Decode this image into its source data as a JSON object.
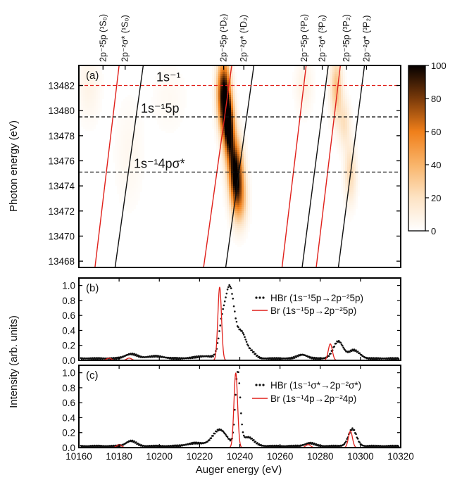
{
  "colors": {
    "frame": "#000000",
    "red": "#e0201b",
    "black": "#111111",
    "cmap_low": "#ffffff",
    "cmap_mid": "#f5891f",
    "cmap_high": "#050000"
  },
  "figure": {
    "xlabel": "Auger energy (eV)",
    "ylabel_top": "Photon energy (eV)",
    "ylabel_bottom": "Intensity (arb. units)"
  },
  "chart_data": [
    {
      "type": "heatmap",
      "panel_label": "(a)",
      "xlim": [
        10160,
        10320
      ],
      "ylim": [
        13467.5,
        13483.6
      ],
      "yticks": [
        13468,
        13470,
        13472,
        13474,
        13476,
        13478,
        13480,
        13482
      ],
      "colorbar": {
        "min": 0,
        "max": 100,
        "ticks": [
          0,
          20,
          40,
          60,
          80,
          100
        ]
      },
      "top_labels": [
        {
          "text": "2p⁻²5p (¹S₀)",
          "x": 10172
        },
        {
          "text": "2p⁻²σ* (¹S₀)",
          "x": 10183
        },
        {
          "text": "2p⁻²5p (¹D₂)",
          "x": 10232
        },
        {
          "text": "2p⁻²σ* (¹D₂)",
          "x": 10242
        },
        {
          "text": "2p⁻²5p (³P₀)",
          "x": 10272
        },
        {
          "text": "2p⁻²σ* (³P₀)",
          "x": 10281
        },
        {
          "text": "2p⁻²5p (³P₂)",
          "x": 10293
        },
        {
          "text": "2p⁻²σ* (³P₂)",
          "x": 10303
        }
      ],
      "hlines": [
        {
          "label": "1s⁻¹",
          "y": 13482.0,
          "color": "red"
        },
        {
          "label": "1s⁻¹5p",
          "y": 13479.5,
          "color": "black"
        },
        {
          "label": "1s⁻¹4pσ*",
          "y": 13475.1,
          "color": "black"
        }
      ],
      "diagonal_lines": [
        {
          "name": "5p 1S0",
          "color": "red",
          "from": [
            10168,
            13467.5
          ],
          "to": [
            10180,
            13483.6
          ]
        },
        {
          "name": "sigma 1S0",
          "color": "black",
          "from": [
            10178,
            13467.5
          ],
          "to": [
            10192,
            13483.6
          ]
        },
        {
          "name": "5p 1D2",
          "color": "red",
          "from": [
            10222,
            13467.5
          ],
          "to": [
            10236,
            13483.6
          ]
        },
        {
          "name": "sigma 1D2",
          "color": "black",
          "from": [
            10233,
            13467.5
          ],
          "to": [
            10247,
            13483.6
          ]
        },
        {
          "name": "5p 3P0",
          "color": "red",
          "from": [
            10261,
            13467.5
          ],
          "to": [
            10273,
            13483.6
          ]
        },
        {
          "name": "sigma 3P0",
          "color": "black",
          "from": [
            10271,
            13467.5
          ],
          "to": [
            10284,
            13483.6
          ]
        },
        {
          "name": "5p 3P2",
          "color": "red",
          "from": [
            10278,
            13467.5
          ],
          "to": [
            10290,
            13483.6
          ]
        },
        {
          "name": "sigma 3P2",
          "color": "black",
          "from": [
            10289,
            13467.5
          ],
          "to": [
            10302,
            13483.6
          ]
        }
      ],
      "blobs": [
        {
          "x": 10232,
          "y": 13481.5,
          "sx": 2.2,
          "sy": 1.8,
          "amp": 100
        },
        {
          "x": 10234,
          "y": 13479.3,
          "sx": 2.0,
          "sy": 1.4,
          "amp": 85
        },
        {
          "x": 10238,
          "y": 13475.0,
          "sx": 2.4,
          "sy": 1.7,
          "amp": 100
        },
        {
          "x": 10235,
          "y": 13477.5,
          "sx": 2.0,
          "sy": 1.5,
          "amp": 55
        },
        {
          "x": 10240,
          "y": 13472.8,
          "sx": 2.5,
          "sy": 1.4,
          "amp": 40
        },
        {
          "x": 10288,
          "y": 13481.8,
          "sx": 2.0,
          "sy": 1.8,
          "amp": 35
        },
        {
          "x": 10292,
          "y": 13479.0,
          "sx": 2.0,
          "sy": 1.3,
          "amp": 20
        },
        {
          "x": 10295,
          "y": 13475.0,
          "sx": 2.0,
          "sy": 1.6,
          "amp": 25
        },
        {
          "x": 10272,
          "y": 13482.0,
          "sx": 3.0,
          "sy": 1.5,
          "amp": 10
        },
        {
          "x": 10165,
          "y": 13482.0,
          "sx": 4.0,
          "sy": 2.0,
          "amp": 8
        },
        {
          "x": 10185,
          "y": 13476.5,
          "sx": 5.0,
          "sy": 3.0,
          "amp": 5
        },
        {
          "x": 10205,
          "y": 13481.0,
          "sx": 6.0,
          "sy": 2.0,
          "amp": 4
        }
      ]
    },
    {
      "type": "line",
      "panel_label": "(b)",
      "xlim": [
        10160,
        10320
      ],
      "ylim": [
        0,
        1.1
      ],
      "yticks": [
        0.0,
        0.2,
        0.4,
        0.6,
        0.8,
        1.0
      ],
      "series": [
        {
          "name": "HBr (1s⁻¹5p→2p⁻²5p)",
          "style": "dots",
          "color": "black",
          "peaks": [
            {
              "c": 10186,
              "h": 0.06,
              "w": 3
            },
            {
              "c": 10198,
              "h": 0.03,
              "w": 4
            },
            {
              "c": 10223,
              "h": 0.03,
              "w": 5
            },
            {
              "c": 10231,
              "h": 0.35,
              "w": 1.6
            },
            {
              "c": 10235,
              "h": 0.95,
              "w": 2.3
            },
            {
              "c": 10241,
              "h": 0.33,
              "w": 2.2
            },
            {
              "c": 10246,
              "h": 0.08,
              "w": 2.0
            },
            {
              "c": 10271,
              "h": 0.05,
              "w": 2.5
            },
            {
              "c": 10289,
              "h": 0.23,
              "w": 2.5
            },
            {
              "c": 10296,
              "h": 0.09,
              "w": 2.0
            },
            {
              "c": 10299,
              "h": 0.05,
              "w": 2.0
            }
          ],
          "baseline": 0.025
        },
        {
          "name": "Br (1s⁻¹5p→2p⁻²5p)",
          "style": "line",
          "color": "red",
          "peaks": [
            {
              "c": 10175,
              "h": 0.03,
              "w": 1.2
            },
            {
              "c": 10185,
              "h": 0.03,
              "w": 1.2
            },
            {
              "c": 10230,
              "h": 0.98,
              "w": 0.9
            },
            {
              "c": 10285,
              "h": 0.22,
              "w": 1.0
            }
          ],
          "baseline": 0.0
        }
      ]
    },
    {
      "type": "line",
      "panel_label": "(c)",
      "xlim": [
        10160,
        10320
      ],
      "ylim": [
        0,
        1.1
      ],
      "yticks": [
        0.0,
        0.2,
        0.4,
        0.6,
        0.8,
        1.0
      ],
      "xticks": [
        10160,
        10180,
        10200,
        10220,
        10240,
        10260,
        10280,
        10300,
        10320
      ],
      "series": [
        {
          "name": "HBr (1s⁻¹σ*→2p⁻²σ*)",
          "style": "dots",
          "color": "black",
          "peaks": [
            {
              "c": 10186,
              "h": 0.07,
              "w": 2.5
            },
            {
              "c": 10218,
              "h": 0.04,
              "w": 4
            },
            {
              "c": 10230,
              "h": 0.22,
              "w": 3.5
            },
            {
              "c": 10239,
              "h": 0.97,
              "w": 1.2
            },
            {
              "c": 10244,
              "h": 0.12,
              "w": 3.0
            },
            {
              "c": 10275,
              "h": 0.04,
              "w": 2.5
            },
            {
              "c": 10296,
              "h": 0.23,
              "w": 2.0
            }
          ],
          "baseline": 0.02
        },
        {
          "name": "Br (1s⁻¹4p→2p⁻²4p)",
          "style": "line",
          "color": "red",
          "peaks": [
            {
              "c": 10180,
              "h": 0.04,
              "w": 1.2
            },
            {
              "c": 10238,
              "h": 1.0,
              "w": 0.9
            },
            {
              "c": 10274,
              "h": 0.04,
              "w": 1.2
            },
            {
              "c": 10295,
              "h": 0.22,
              "w": 1.0
            }
          ],
          "baseline": 0.0
        }
      ]
    }
  ]
}
